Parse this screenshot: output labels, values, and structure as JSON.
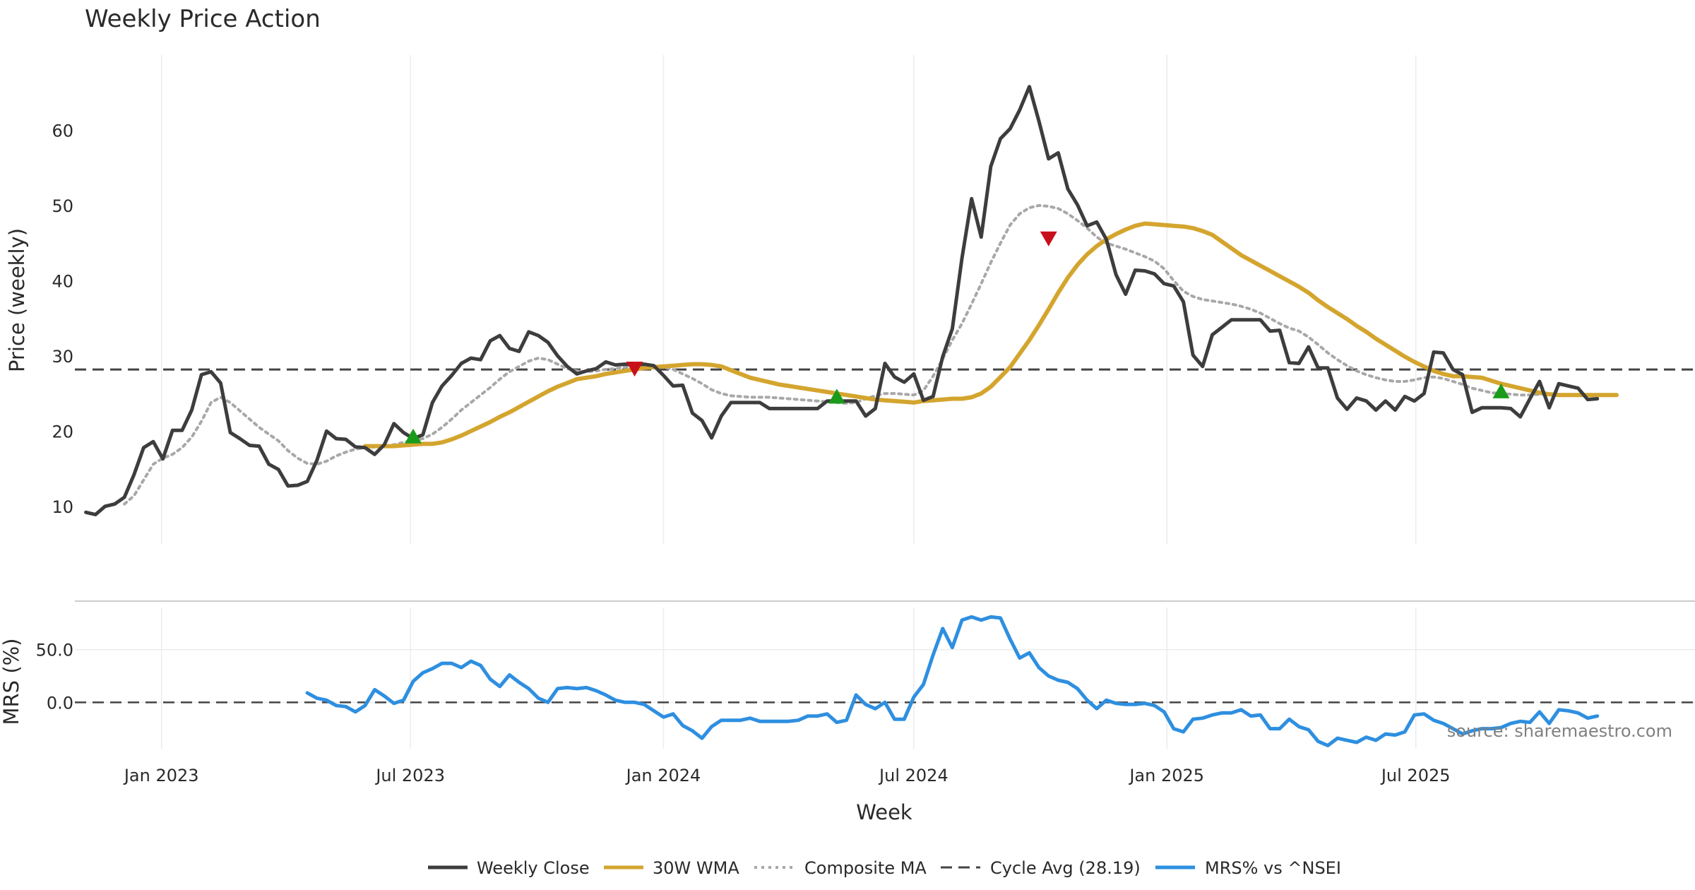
{
  "chart_data": {
    "type": "line",
    "title": "Weekly Price Action",
    "xlabel": "Week",
    "x_ticks": [
      "Jan 2023",
      "Jul 2023",
      "Jan 2024",
      "Jul 2024",
      "Jan 2025",
      "Jul 2025"
    ],
    "x_tick_dates": [
      "2023-01-01",
      "2023-07-01",
      "2024-01-01",
      "2024-07-01",
      "2025-01-01",
      "2025-07-01"
    ],
    "x_range": [
      "2022-10-30",
      "2026-01-20"
    ],
    "x_start": "2022-11-07",
    "x_step_days": 7,
    "grid": "vertical",
    "legend_position": "bottom-center",
    "source": "source: sharemaestro.com",
    "price_panel": {
      "ylabel": "Price (weekly)",
      "yticks": [
        10,
        20,
        30,
        40,
        50,
        60
      ],
      "ylim": [
        5,
        70
      ],
      "cycle_avg": 28.19,
      "series": [
        {
          "name": "Weekly Close",
          "color": "#3d3d3d",
          "start_index": 0,
          "values": [
            9.2,
            8.9,
            10,
            10.3,
            11.2,
            14.2,
            17.8,
            18.6,
            16.3,
            20.1,
            20.1,
            22.8,
            27.5,
            27.9,
            26.4,
            19.8,
            19,
            18.1,
            18,
            15.6,
            14.9,
            12.7,
            12.8,
            13.3,
            16.1,
            20,
            19,
            18.9,
            17.9,
            17.8,
            16.9,
            18.2,
            21,
            19.8,
            19,
            19.5,
            23.8,
            26,
            27.4,
            29,
            29.7,
            29.5,
            32,
            32.7,
            31,
            30.6,
            33.2,
            32.7,
            31.8,
            30,
            28.6,
            27.6,
            28,
            28.3,
            29.2,
            28.8,
            28.9,
            28.8,
            28.9,
            28.7,
            27.4,
            26,
            26.1,
            22.4,
            21.4,
            19.1,
            22,
            23.8,
            23.8,
            23.8,
            23.8,
            23,
            23,
            23,
            23,
            23,
            23,
            24,
            24,
            24,
            24,
            22,
            23,
            29,
            27.2,
            26.5,
            27.6,
            24.1,
            24.6,
            29.9,
            33.6,
            43,
            50.9,
            45.8,
            55.2,
            58.9,
            60.2,
            62.7,
            65.8,
            61.2,
            56.2,
            57,
            52.2,
            50.1,
            47.3,
            47.8,
            45.5,
            40.8,
            38.2,
            41.4,
            41.3,
            40.9,
            39.6,
            39.3,
            37.2,
            30.1,
            28.6,
            32.8,
            33.8,
            34.8,
            34.8,
            34.8,
            34.8,
            33.3,
            33.4,
            29.1,
            29,
            31.2,
            28.4,
            28.4,
            24.4,
            22.9,
            24.4,
            24,
            22.8,
            24,
            22.8,
            24.6,
            24,
            25,
            30.5,
            30.4,
            28.2,
            27.5,
            22.5,
            23.1,
            23.1,
            23.1,
            23,
            21.9,
            24.3,
            26.6,
            23.1,
            26.3,
            26,
            25.7,
            24.2,
            24.3
          ]
        },
        {
          "name": "30W WMA",
          "color": "#d4a52e",
          "start_index": 29,
          "values": [
            18,
            18,
            18,
            18,
            18.1,
            18.2,
            18.3,
            18.3,
            18.5,
            18.9,
            19.4,
            20,
            20.6,
            21.2,
            21.9,
            22.5,
            23.2,
            23.9,
            24.6,
            25.3,
            25.9,
            26.4,
            26.9,
            27.1,
            27.3,
            27.6,
            27.8,
            28,
            28.2,
            28.4,
            28.5,
            28.6,
            28.7,
            28.8,
            28.9,
            28.9,
            28.8,
            28.6,
            28.1,
            27.6,
            27.1,
            26.8,
            26.5,
            26.2,
            26,
            25.8,
            25.6,
            25.4,
            25.2,
            25,
            24.8,
            24.6,
            24.4,
            24.2,
            24.1,
            24,
            23.9,
            23.8,
            24,
            24.1,
            24.2,
            24.3,
            24.3,
            24.5,
            25,
            25.9,
            27.2,
            28.5,
            30.3,
            32.1,
            34.1,
            36.2,
            38.4,
            40.4,
            42.1,
            43.5,
            44.6,
            45.5,
            46.2,
            46.8,
            47.3,
            47.6,
            47.5,
            47.4,
            47.3,
            47.2,
            47,
            46.6,
            46.1,
            45.2,
            44.3,
            43.4,
            42.7,
            42,
            41.3,
            40.6,
            39.9,
            39.2,
            38.4,
            37.4,
            36.5,
            35.7,
            34.9,
            34,
            33.2,
            32.3,
            31.5,
            30.7,
            29.9,
            29.2,
            28.6,
            28,
            27.6,
            27.3,
            27.3,
            27.2,
            27.1,
            26.7,
            26.3,
            26,
            25.7,
            25.4,
            25.1,
            24.9,
            24.8,
            24.8,
            24.8,
            24.8,
            24.8,
            24.8,
            24.8
          ]
        },
        {
          "name": "Composite MA",
          "color": "#a8a8a8",
          "start_index": 4,
          "values": [
            10.3,
            11.4,
            13.5,
            15.6,
            16.4,
            16.9,
            17.8,
            19.2,
            21.3,
            23.8,
            24.5,
            23.8,
            22.7,
            21.6,
            20.5,
            19.6,
            18.7,
            17.4,
            16.4,
            15.7,
            15.6,
            16,
            16.7,
            17.2,
            17.6,
            17.8,
            17.9,
            18,
            18.2,
            18.5,
            18.7,
            19,
            19.6,
            20.5,
            21.6,
            22.8,
            23.8,
            24.8,
            25.8,
            26.9,
            27.9,
            28.6,
            29.3,
            29.7,
            29.5,
            28.9,
            28.3,
            28,
            27.9,
            28,
            28.2,
            28.3,
            28.5,
            28.5,
            28.6,
            28.6,
            28.5,
            28.2,
            27.6,
            27,
            26.3,
            25.5,
            25,
            24.7,
            24.6,
            24.5,
            24.5,
            24.5,
            24.4,
            24.3,
            24.2,
            24.1,
            24,
            23.9,
            23.8,
            23.7,
            23.8,
            24.3,
            24.7,
            25,
            25,
            24.9,
            24.8,
            25.4,
            27.3,
            29.6,
            32.1,
            34.3,
            36.9,
            39.6,
            42.4,
            45,
            47.4,
            48.9,
            49.7,
            50,
            49.9,
            49.6,
            48.9,
            48,
            47,
            45.8,
            45,
            44.6,
            44.2,
            43.7,
            43.2,
            42.6,
            41.6,
            40,
            38.6,
            37.9,
            37.5,
            37.3,
            37.1,
            36.9,
            36.6,
            36.2,
            35.7,
            35,
            34.3,
            33.7,
            33.3,
            32.5,
            31.5,
            30.4,
            29.5,
            28.7,
            28,
            27.5,
            27.1,
            26.8,
            26.6,
            26.6,
            26.8,
            27.1,
            27.2,
            27,
            26.6,
            26.2,
            25.7,
            25.4,
            25.1,
            25,
            24.9,
            24.8,
            24.8,
            24.9,
            24.9,
            24.8,
            24.8,
            24.8
          ]
        }
      ],
      "buy_signals": [
        {
          "index": 34,
          "value": 19.3
        },
        {
          "index": 78,
          "value": 24.6
        },
        {
          "index": 147,
          "value": 25.3
        }
      ],
      "sell_signals": [
        {
          "index": 57,
          "value": 28.3
        },
        {
          "index": 100,
          "value": 45.6
        }
      ]
    },
    "mrs_panel": {
      "ylabel": "MRS (%)",
      "yticks": [
        0.0,
        50.0
      ],
      "ytick_labels": [
        "0.0",
        "50.0"
      ],
      "ylim": [
        -44,
        90
      ],
      "zero_line": 0,
      "series": [
        {
          "name": "MRS% vs ^NSEI",
          "color": "#2e8fe0",
          "start_index": 23,
          "values": [
            9,
            4,
            2,
            -3,
            -4,
            -9,
            -3,
            12,
            6,
            -1,
            2,
            20,
            28,
            32,
            37,
            37,
            33,
            39,
            35,
            22,
            15,
            26,
            19,
            13,
            4,
            0,
            13,
            14,
            13,
            14,
            11,
            7,
            2,
            0,
            0,
            -2,
            -8,
            -14,
            -11,
            -22,
            -27,
            -34,
            -23,
            -17,
            -17,
            -17,
            -15,
            -18,
            -18,
            -18,
            -18,
            -17,
            -13,
            -13,
            -11,
            -19,
            -17,
            7,
            -2,
            -6,
            0,
            -16,
            -16,
            5,
            17,
            45,
            70,
            52,
            78,
            81,
            78,
            81,
            80,
            60,
            42,
            47,
            33,
            25,
            21,
            19,
            13,
            2,
            -6,
            2,
            -1,
            -2,
            -2,
            -1,
            -3,
            -9,
            -25,
            -28,
            -16,
            -15,
            -12,
            -10,
            -10,
            -7,
            -13,
            -12,
            -25,
            -25,
            -16,
            -23,
            -26,
            -37,
            -41,
            -34,
            -36,
            -38,
            -33,
            -36,
            -30,
            -31,
            -28,
            -12,
            -11,
            -17,
            -20,
            -25,
            -30,
            -27,
            -25,
            -25,
            -24,
            -20,
            -18,
            -19,
            -9,
            -20,
            -7,
            -8,
            -10,
            -15,
            -13
          ]
        }
      ]
    }
  }
}
